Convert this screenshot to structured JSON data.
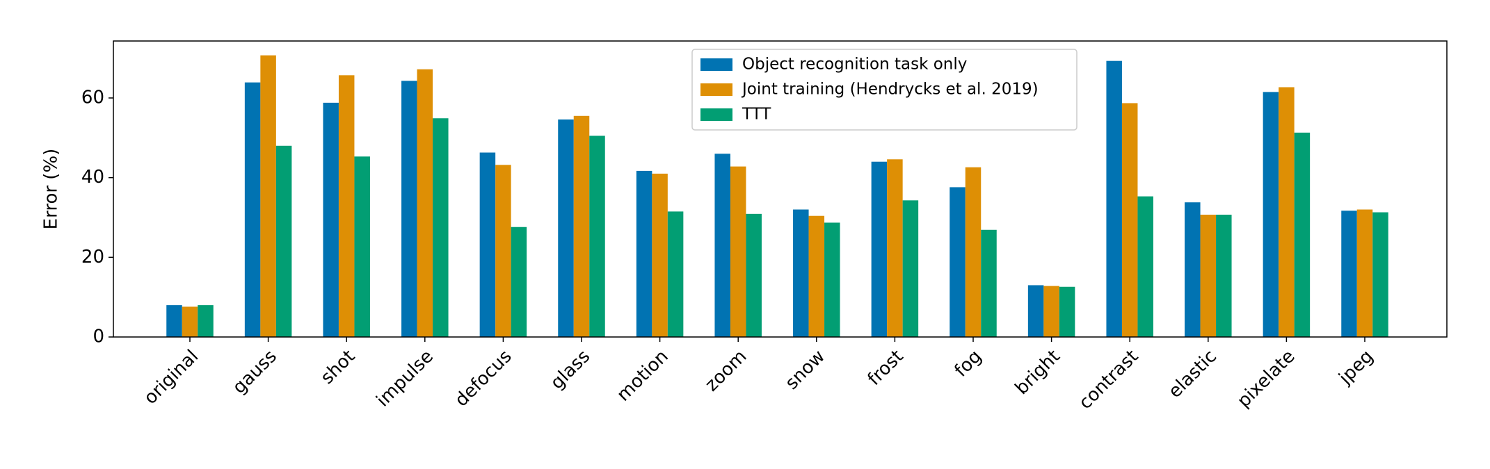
{
  "chart_data": {
    "type": "bar",
    "ylabel": "Error (%)",
    "categories": [
      "original",
      "gauss",
      "shot",
      "impulse",
      "defocus",
      "glass",
      "motion",
      "zoom",
      "snow",
      "frost",
      "fog",
      "bright",
      "contrast",
      "elastic",
      "pixelate",
      "jpeg"
    ],
    "series": [
      {
        "name": "Object recognition task only",
        "color": "#0173b2",
        "values": [
          8.0,
          63.9,
          58.8,
          64.3,
          46.3,
          54.6,
          41.7,
          46.0,
          32.0,
          44.0,
          37.6,
          13.0,
          69.3,
          33.8,
          61.5,
          31.7
        ]
      },
      {
        "name": "Joint training (Hendrycks et al. 2019)",
        "color": "#de8f05",
        "values": [
          7.6,
          70.7,
          65.7,
          67.2,
          43.2,
          55.5,
          41.0,
          42.8,
          30.4,
          44.6,
          42.6,
          12.8,
          58.7,
          30.7,
          62.7,
          32.0
        ]
      },
      {
        "name": "TTT",
        "color": "#029e73",
        "values": [
          8.0,
          48.0,
          45.3,
          54.9,
          27.6,
          50.5,
          31.5,
          30.9,
          28.7,
          34.3,
          26.9,
          12.6,
          35.3,
          30.7,
          51.3,
          31.3
        ]
      }
    ],
    "ylim": [
      0,
      74.3
    ],
    "yticks": [
      0,
      20,
      40,
      60
    ],
    "legend": "upper center"
  }
}
